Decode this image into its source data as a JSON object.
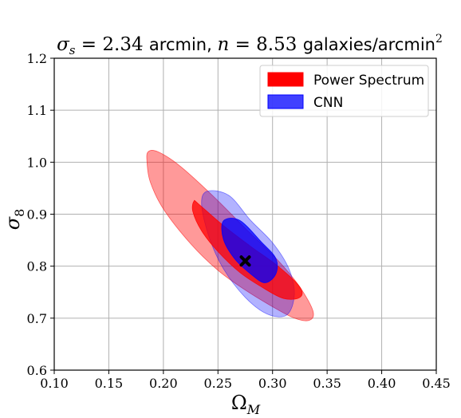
{
  "chart_data": {
    "type": "contour",
    "title_parts": {
      "sigma_symbol": "σ",
      "sigma_sub": "s",
      "sigma_value": " = 2.34 ",
      "sigma_unit": "arcmin, ",
      "n_symbol": "n",
      "n_value": " = 8.53 ",
      "n_unit": "galaxies/arcmin",
      "n_unit_exp": "2"
    },
    "xlabel": {
      "symbol": "Ω",
      "sub": "M"
    },
    "ylabel": {
      "symbol": "σ",
      "sub": "8"
    },
    "xlim": [
      0.1,
      0.45
    ],
    "ylim": [
      0.6,
      1.2
    ],
    "xticks": [
      0.1,
      0.15,
      0.2,
      0.25,
      0.3,
      0.35,
      0.4,
      0.45
    ],
    "yticks": [
      0.6,
      0.7,
      0.8,
      0.9,
      1.0,
      1.1,
      1.2
    ],
    "xtick_labels": [
      "0.10",
      "0.15",
      "0.20",
      "0.25",
      "0.30",
      "0.35",
      "0.40",
      "0.45"
    ],
    "ytick_labels": [
      "0.6",
      "0.7",
      "0.8",
      "0.9",
      "1.0",
      "1.1",
      "1.2"
    ],
    "grid": true,
    "legend_position": "top-right",
    "fiducial": {
      "x": 0.275,
      "y": 0.81,
      "marker": "X"
    },
    "series": [
      {
        "name": "Power Spectrum",
        "color": "#ff0000",
        "contours": [
          {
            "level": "outer",
            "opacity": 0.4,
            "points": [
              [
                0.186,
                1.02
              ],
              [
                0.195,
                1.02
              ],
              [
                0.215,
                0.993
              ],
              [
                0.245,
                0.936
              ],
              [
                0.275,
                0.873
              ],
              [
                0.305,
                0.811
              ],
              [
                0.325,
                0.76
              ],
              [
                0.337,
                0.714
              ],
              [
                0.334,
                0.696
              ],
              [
                0.32,
                0.7
              ],
              [
                0.3,
                0.722
              ],
              [
                0.275,
                0.754
              ],
              [
                0.25,
                0.792
              ],
              [
                0.225,
                0.843
              ],
              [
                0.2,
                0.91
              ],
              [
                0.188,
                0.962
              ],
              [
                0.185,
                1.0
              ]
            ]
          },
          {
            "level": "inner",
            "opacity": 0.75,
            "points": [
              [
                0.228,
                0.925
              ],
              [
                0.232,
                0.92
              ],
              [
                0.255,
                0.878
              ],
              [
                0.28,
                0.838
              ],
              [
                0.305,
                0.8
              ],
              [
                0.325,
                0.76
              ],
              [
                0.325,
                0.74
              ],
              [
                0.31,
                0.738
              ],
              [
                0.29,
                0.76
              ],
              [
                0.27,
                0.788
              ],
              [
                0.25,
                0.828
              ],
              [
                0.235,
                0.868
              ],
              [
                0.227,
                0.905
              ]
            ]
          }
        ]
      },
      {
        "name": "CNN",
        "color": "#0000ff",
        "contours": [
          {
            "level": "outer",
            "opacity": 0.3,
            "points": [
              [
                0.24,
                0.944
              ],
              [
                0.26,
                0.936
              ],
              [
                0.28,
                0.888
              ],
              [
                0.3,
                0.845
              ],
              [
                0.315,
                0.795
              ],
              [
                0.32,
                0.745
              ],
              [
                0.313,
                0.706
              ],
              [
                0.295,
                0.708
              ],
              [
                0.275,
                0.74
              ],
              [
                0.255,
                0.795
              ],
              [
                0.242,
                0.855
              ],
              [
                0.235,
                0.918
              ]
            ]
          },
          {
            "level": "inner",
            "opacity": 0.75,
            "points": [
              [
                0.255,
                0.887
              ],
              [
                0.27,
                0.888
              ],
              [
                0.29,
                0.846
              ],
              [
                0.303,
                0.815
              ],
              [
                0.303,
                0.785
              ],
              [
                0.293,
                0.768
              ],
              [
                0.28,
                0.785
              ],
              [
                0.265,
                0.815
              ],
              [
                0.255,
                0.852
              ]
            ]
          }
        ]
      }
    ]
  },
  "legend": {
    "items": [
      {
        "label": "Power Spectrum",
        "color": "#ff0000",
        "opacity": 1.0
      },
      {
        "label": "CNN",
        "color": "#0000ff",
        "opacity": 0.75
      }
    ]
  }
}
